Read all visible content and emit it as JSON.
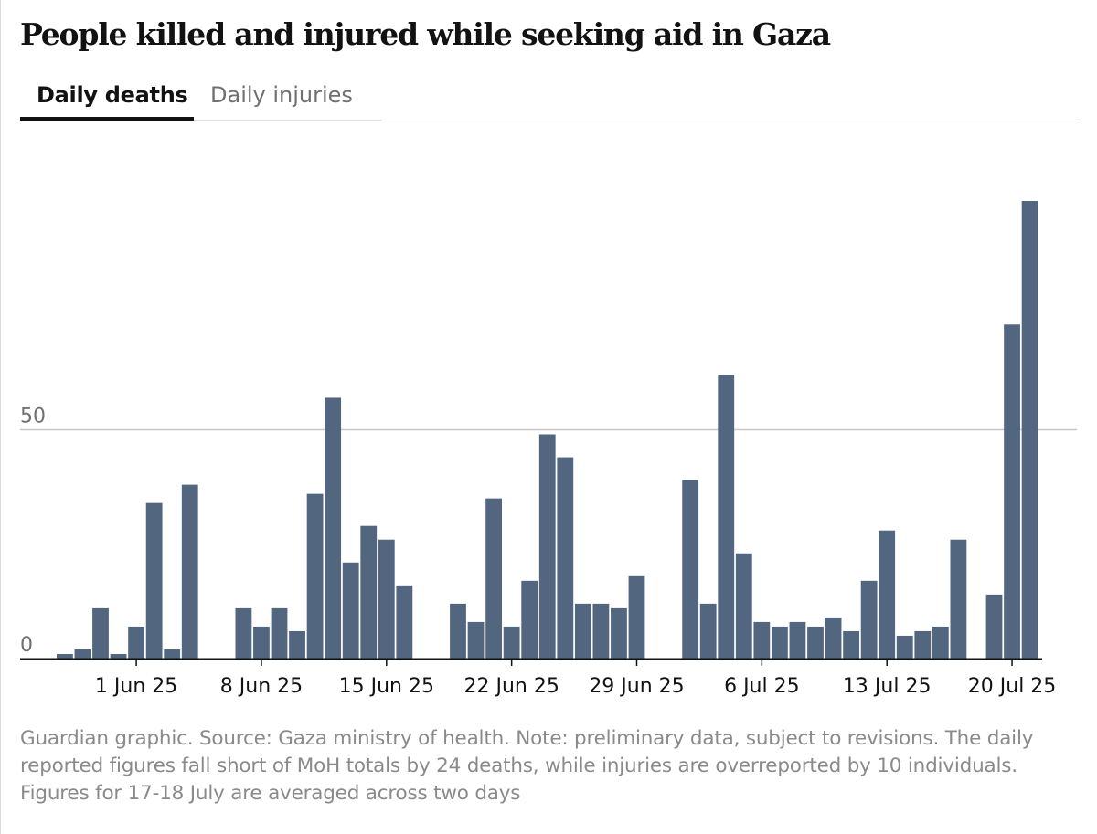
{
  "title": "People killed and injured while seeking aid in Gaza",
  "tabs": [
    {
      "label": "Daily deaths",
      "active": true
    },
    {
      "label": "Daily injuries",
      "active": false
    }
  ],
  "footnote": "Guardian graphic. Source: Gaza ministry of health. Note: preliminary data, subject to revisions. The daily reported figures fall short of MoH totals by 24 deaths, while injuries are overreported by 10 individuals. Figures for 17-18 July are averaged across two days",
  "chart_data": {
    "type": "bar",
    "title": "Daily deaths",
    "xlabel": "",
    "ylabel": "",
    "ylim": [
      0,
      100
    ],
    "yticks": [
      "0",
      "50"
    ],
    "grid": true,
    "bar_color": "#52667f",
    "start_date": "2025-05-28",
    "x_ticks": [
      {
        "label": "1 Jun 25",
        "index": 4
      },
      {
        "label": "8 Jun 25",
        "index": 11
      },
      {
        "label": "15 Jun 25",
        "index": 18
      },
      {
        "label": "22 Jun 25",
        "index": 25
      },
      {
        "label": "29 Jun 25",
        "index": 32
      },
      {
        "label": "6 Jul 25",
        "index": 39
      },
      {
        "label": "13 Jul 25",
        "index": 46
      },
      {
        "label": "20 Jul 25",
        "index": 53
      }
    ],
    "values": [
      1,
      2,
      11,
      1,
      7,
      34,
      2,
      38,
      0,
      0,
      11,
      7,
      11,
      6,
      36,
      57,
      21,
      29,
      26,
      16,
      0,
      0,
      12,
      8,
      35,
      7,
      17,
      49,
      44,
      12,
      12,
      11,
      18,
      0,
      0,
      39,
      12,
      62,
      23,
      8,
      7,
      8,
      7,
      9,
      6,
      17,
      28,
      5,
      6,
      7,
      26,
      0,
      14,
      73,
      100
    ]
  }
}
